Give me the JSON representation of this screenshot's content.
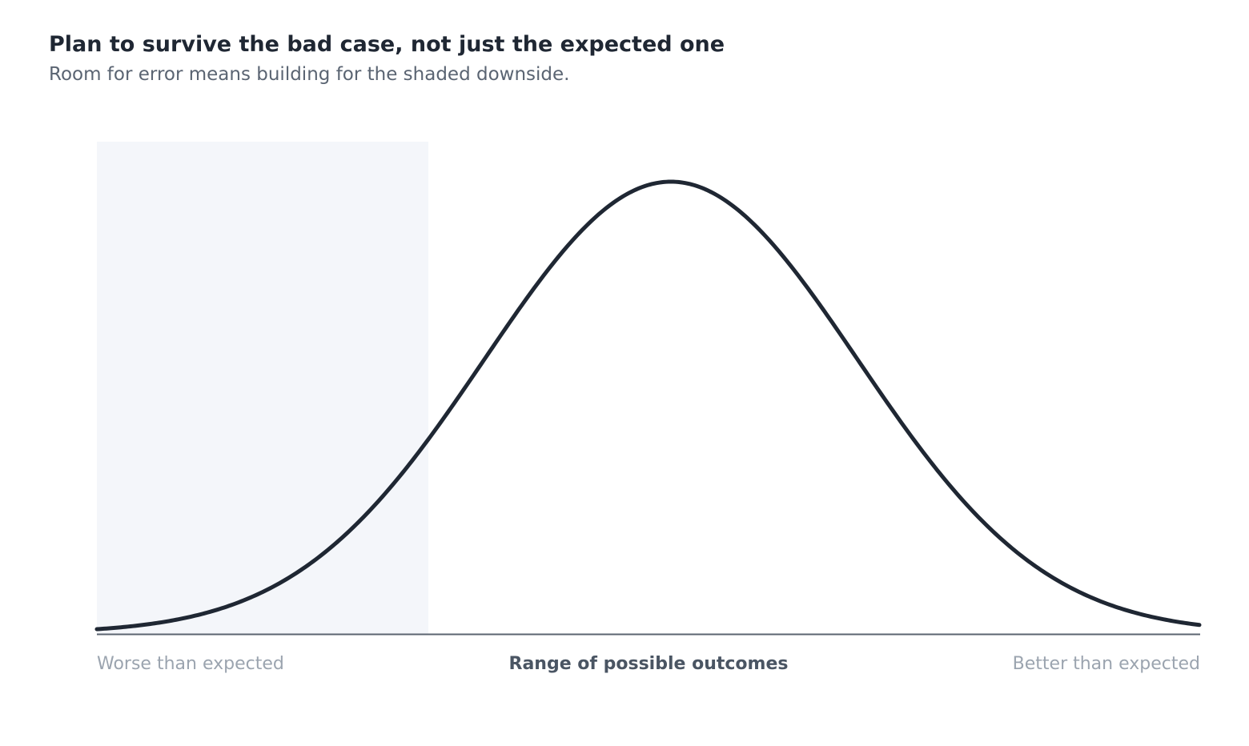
{
  "header": {
    "title": "Plan to survive the bad case, not just the expected one",
    "subtitle": "Room for error means building for the shaded downside."
  },
  "axis": {
    "left_label": "Worse than expected",
    "center_label": "Range of possible outcomes",
    "right_label": "Better than expected"
  }
}
